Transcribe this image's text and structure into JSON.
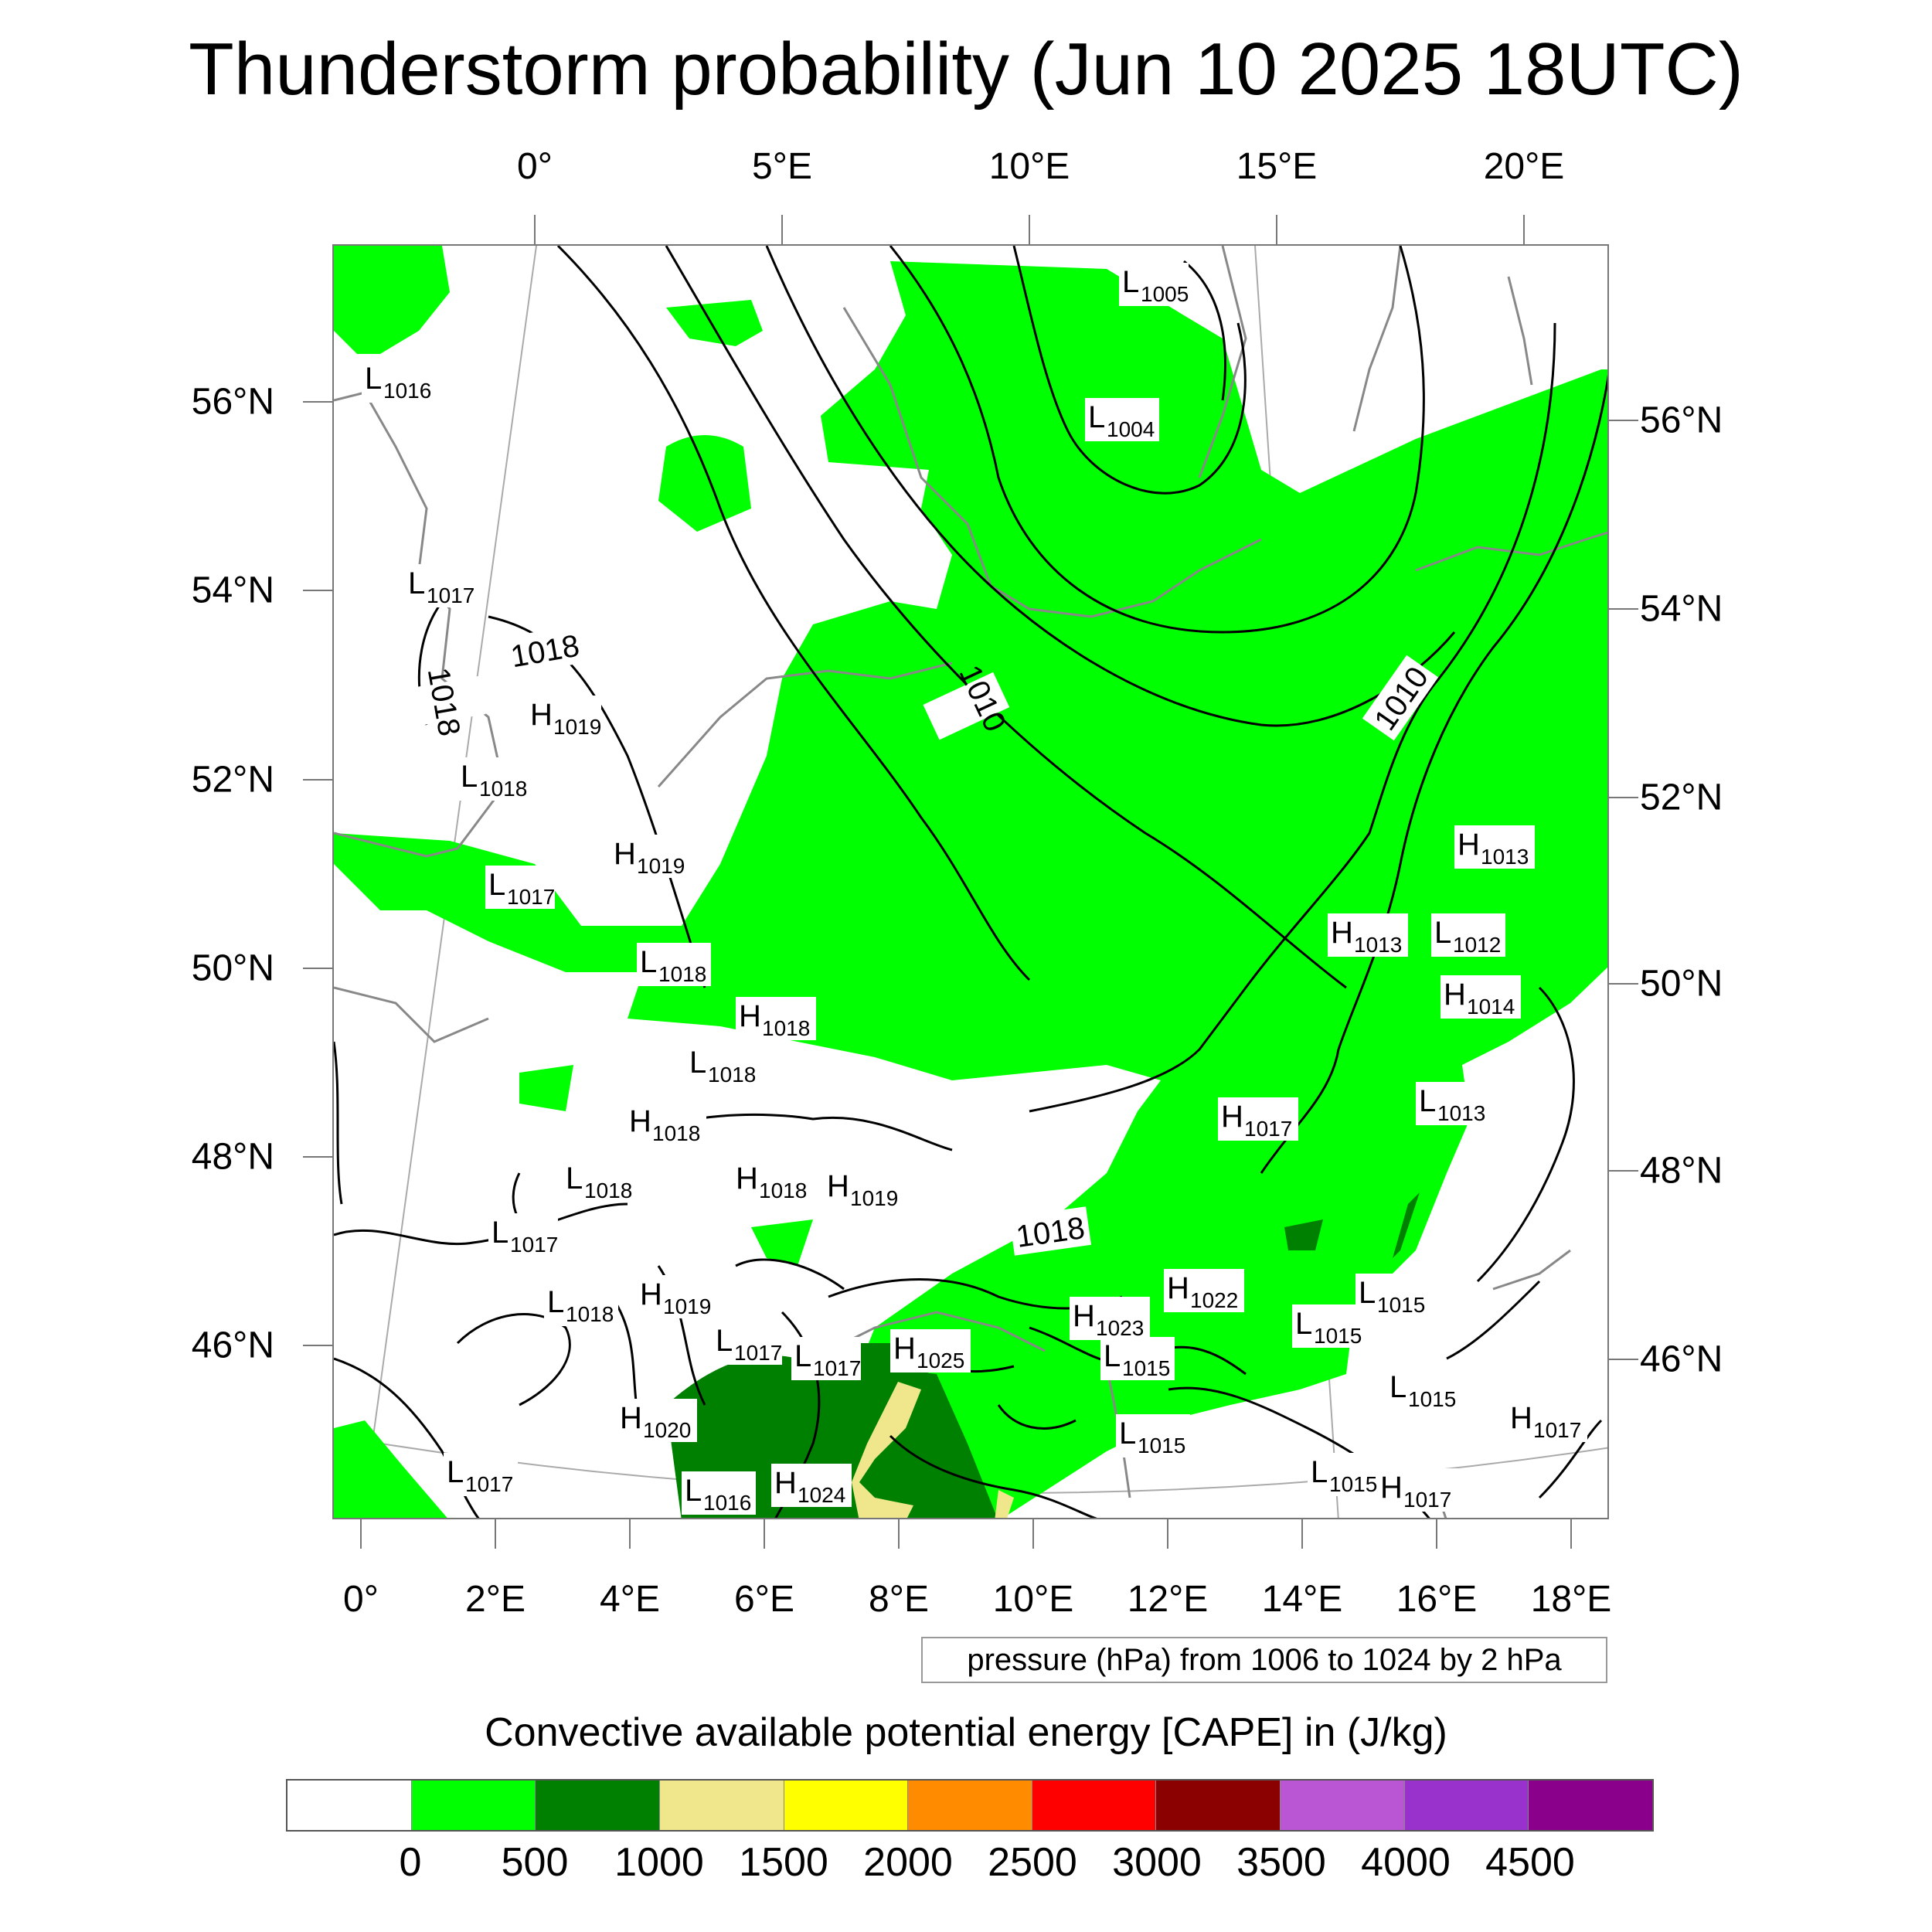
{
  "title": "Thunderstorm probability (Jun 10 2025 18UTC)",
  "map": {
    "top_lon_labels": [
      "0°",
      "5°E",
      "10°E",
      "15°E",
      "20°E"
    ],
    "bottom_lon_labels": [
      "0°",
      "2°E",
      "4°E",
      "6°E",
      "8°E",
      "10°E",
      "12°E",
      "14°E",
      "16°E",
      "18°E"
    ],
    "left_lat_labels": [
      "56°N",
      "54°N",
      "52°N",
      "50°N",
      "48°N",
      "46°N"
    ],
    "right_lat_labels": [
      "56°N",
      "54°N",
      "52°N",
      "50°N",
      "48°N",
      "46°N"
    ],
    "contour_labels": [
      "1018",
      "1018",
      "1010",
      "1010",
      "1018"
    ],
    "pressure_centers": [
      {
        "type": "L",
        "value": "1005"
      },
      {
        "type": "L",
        "value": "1016"
      },
      {
        "type": "L",
        "value": "1004"
      },
      {
        "type": "L",
        "value": "1017"
      },
      {
        "type": "H",
        "value": "1019"
      },
      {
        "type": "L",
        "value": "1018"
      },
      {
        "type": "H",
        "value": "1019"
      },
      {
        "type": "L",
        "value": "1017"
      },
      {
        "type": "L",
        "value": "1018"
      },
      {
        "type": "H",
        "value": "1018"
      },
      {
        "type": "L",
        "value": "1018"
      },
      {
        "type": "H",
        "value": "1013"
      },
      {
        "type": "H",
        "value": "1013"
      },
      {
        "type": "L",
        "value": "1012"
      },
      {
        "type": "H",
        "value": "1014"
      },
      {
        "type": "L",
        "value": "1013"
      },
      {
        "type": "H",
        "value": "1017"
      },
      {
        "type": "H",
        "value": "1018"
      },
      {
        "type": "L",
        "value": "1018"
      },
      {
        "type": "H",
        "value": "1018"
      },
      {
        "type": "H",
        "value": "1019"
      },
      {
        "type": "L",
        "value": "1017"
      },
      {
        "type": "L",
        "value": "1018"
      },
      {
        "type": "H",
        "value": "1019"
      },
      {
        "type": "L",
        "value": "1017"
      },
      {
        "type": "L",
        "value": "1017"
      },
      {
        "type": "H",
        "value": "1025"
      },
      {
        "type": "H",
        "value": "1023"
      },
      {
        "type": "H",
        "value": "1022"
      },
      {
        "type": "L",
        "value": "1015"
      },
      {
        "type": "L",
        "value": "1015"
      },
      {
        "type": "L",
        "value": "1015"
      },
      {
        "type": "L",
        "value": "1015"
      },
      {
        "type": "H",
        "value": "1020"
      },
      {
        "type": "L",
        "value": "1017"
      },
      {
        "type": "L",
        "value": "1016"
      },
      {
        "type": "H",
        "value": "1024"
      },
      {
        "type": "L",
        "value": "1015"
      },
      {
        "type": "H",
        "value": "1017"
      },
      {
        "type": "H",
        "value": "1017"
      },
      {
        "type": "L",
        "value": "1015"
      }
    ]
  },
  "pressure_note": "pressure (hPa) from 1006 to 1024 by 2 hPa",
  "legend": {
    "title": "Convective available potential energy [CAPE] in (J/kg)",
    "colors": [
      "#ffffff",
      "#00ff00",
      "#008000",
      "#f0e68c",
      "#ffff00",
      "#ff8c00",
      "#ff0000",
      "#8b0000",
      "#ba55d3",
      "#9932cc",
      "#8b008b"
    ],
    "labels": [
      "0",
      "500",
      "1000",
      "1500",
      "2000",
      "2500",
      "3000",
      "3500",
      "4000",
      "4500"
    ]
  }
}
